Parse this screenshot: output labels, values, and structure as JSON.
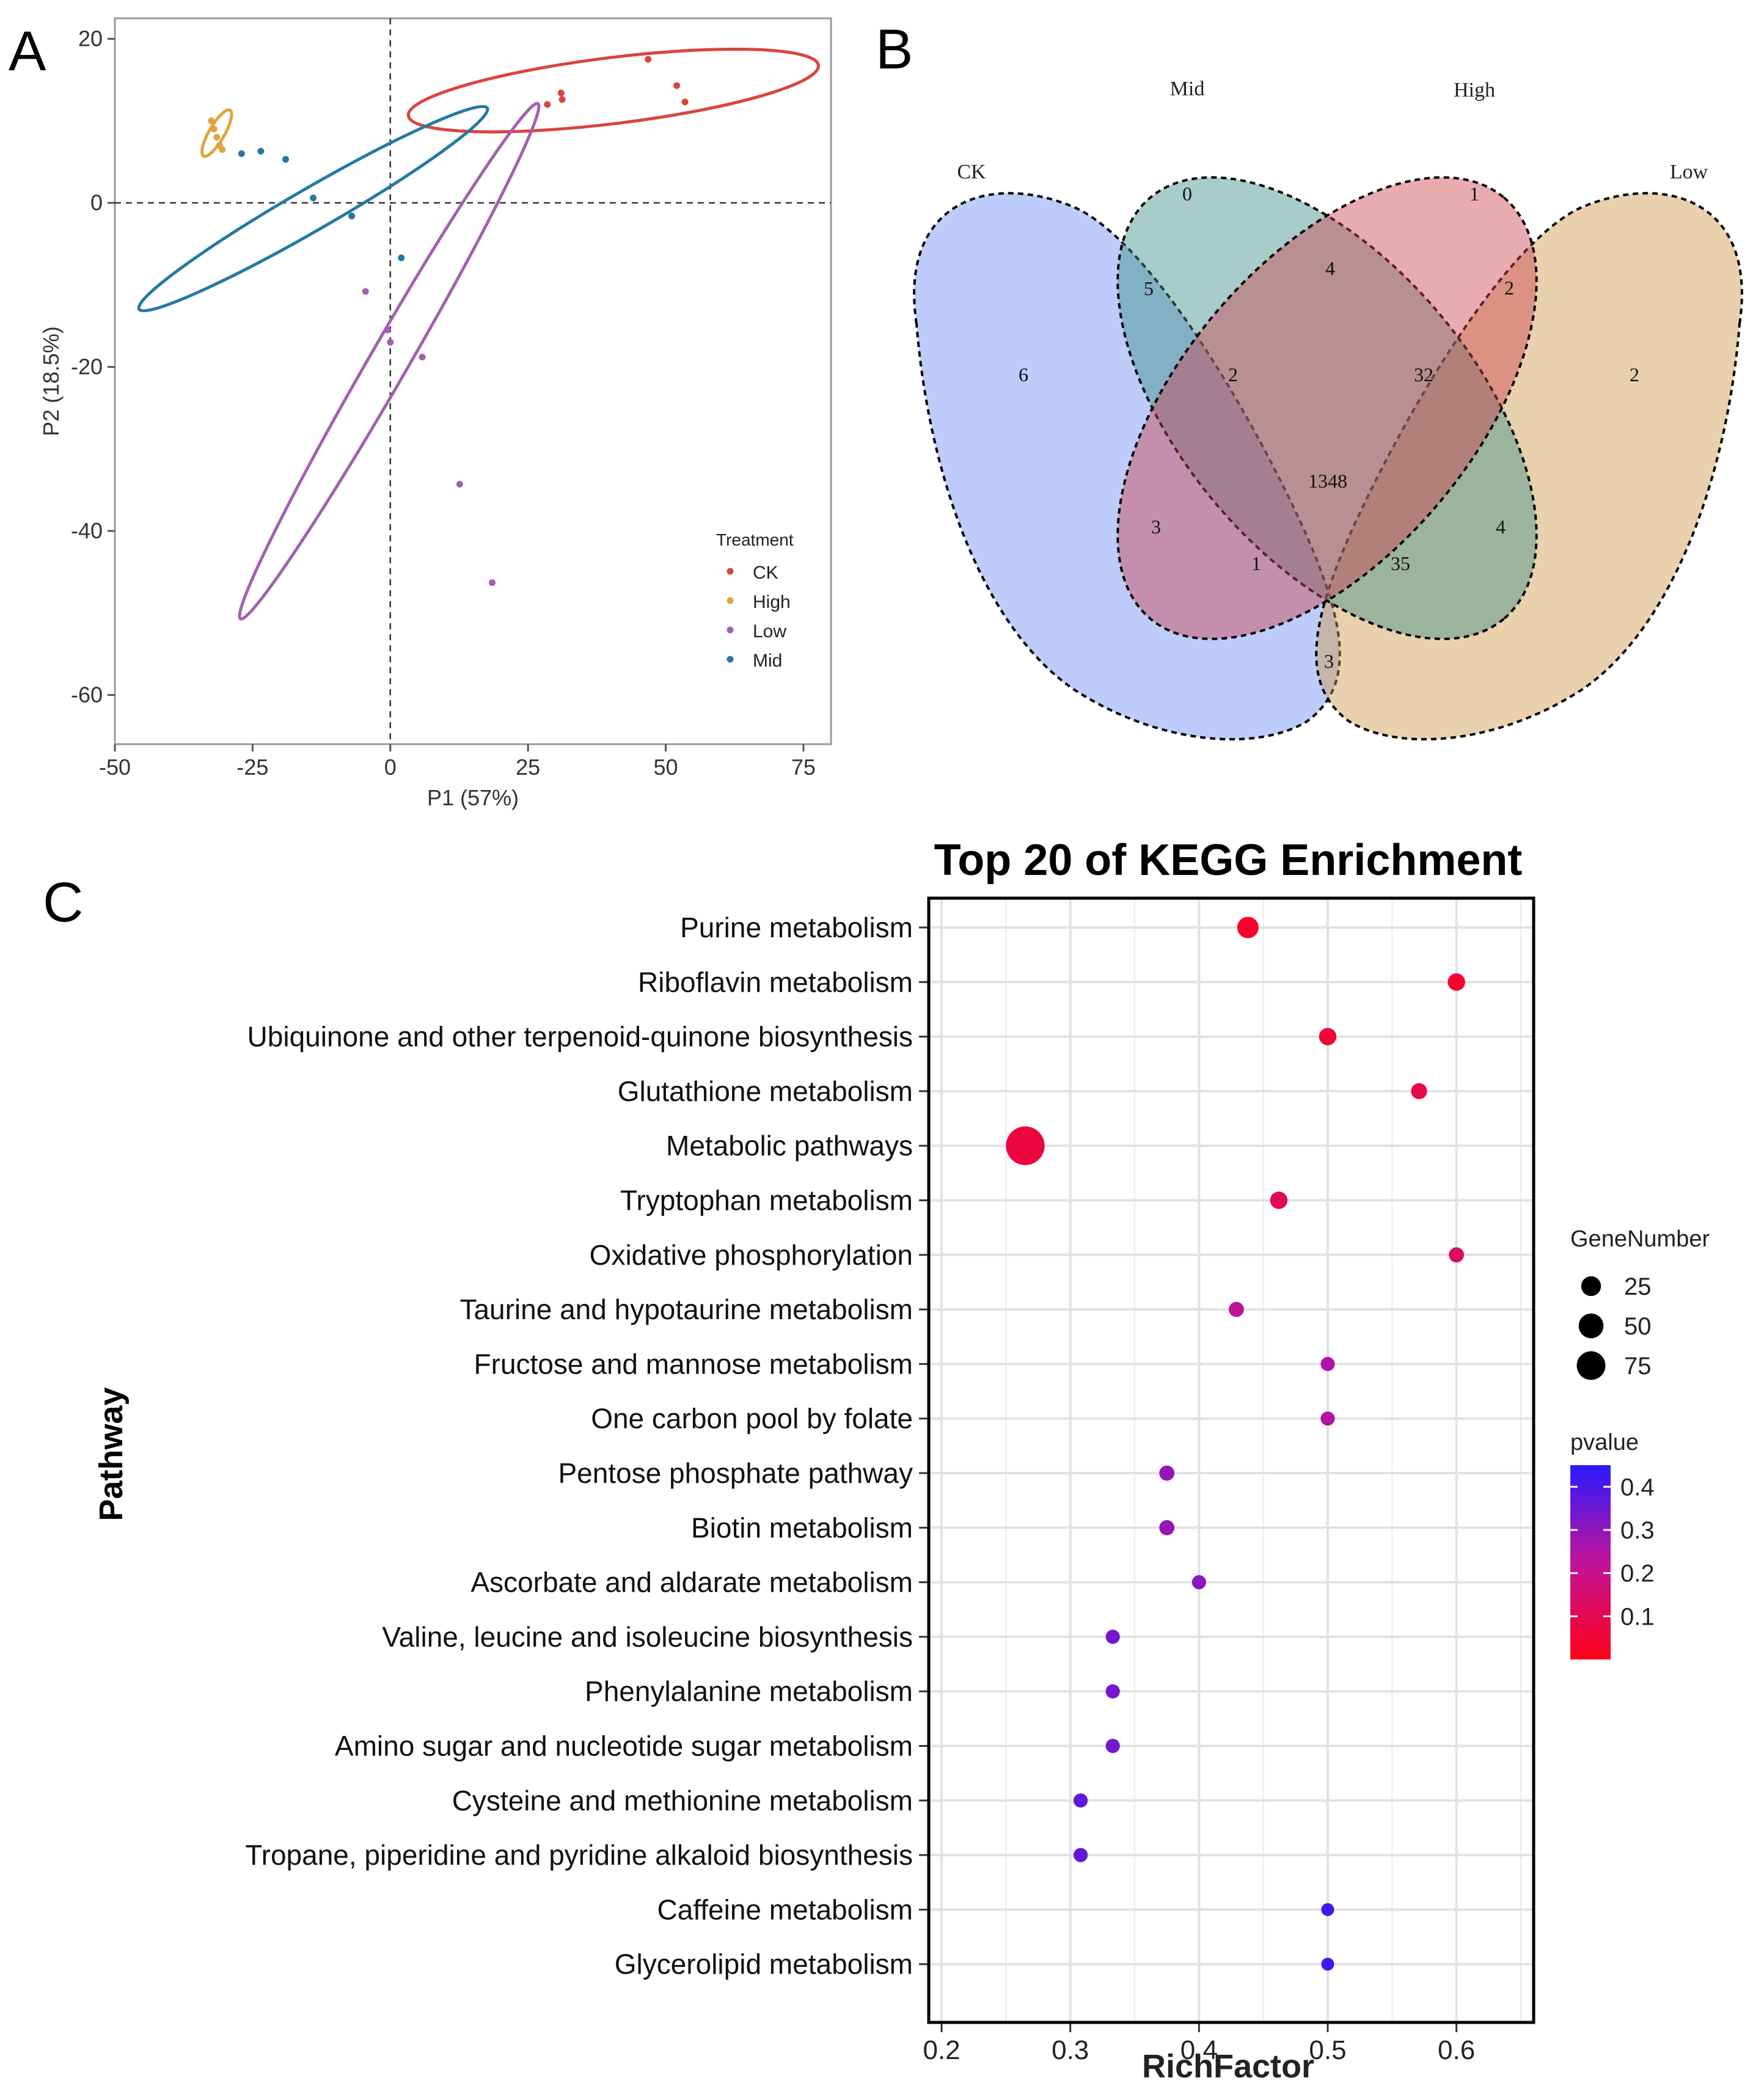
{
  "panels": {
    "a": "A",
    "b": "B",
    "c": "C"
  },
  "chart_data": [
    {
      "type": "scatter",
      "panel": "A",
      "xlabel": "P1 (57%)",
      "ylabel": "P2 (18.5%)",
      "xlim": [
        -50,
        80
      ],
      "ylim": [
        -66,
        22.5
      ],
      "xticks": [
        -50,
        -25,
        0,
        25,
        50,
        75
      ],
      "xtick_labels": [
        "-50",
        "-25",
        "0",
        "25",
        "50",
        "75"
      ],
      "yticks": [
        20,
        0,
        -20,
        -40,
        -60
      ],
      "ytick_labels": [
        "20",
        "0",
        "-20",
        "-40",
        "-60"
      ],
      "legend": {
        "title": "Treatment",
        "position": "bottom-right"
      },
      "series": [
        {
          "name": "CK",
          "color": "#d9453d",
          "points": [
            [
              28.5,
              12.0
            ],
            [
              31.0,
              13.4
            ],
            [
              31.2,
              12.6
            ],
            [
              46.8,
              17.5
            ],
            [
              52.0,
              14.3
            ],
            [
              53.5,
              12.3
            ]
          ],
          "ellipse": {
            "cx": 40.5,
            "cy": 13.7,
            "rx": 37.5,
            "ry": 6.0,
            "angle": 7
          }
        },
        {
          "name": "High",
          "color": "#e3a33b",
          "points": [
            [
              -32.5,
              10.0
            ],
            [
              -32.0,
              9.0
            ],
            [
              -31.5,
              8.0
            ],
            [
              -31.0,
              7.0
            ],
            [
              -30.5,
              6.5
            ]
          ],
          "ellipse": {
            "cx": -31.5,
            "cy": 8.5,
            "rx": 4.8,
            "ry": 1.4,
            "angle": 60
          }
        },
        {
          "name": "Low",
          "color": "#a45fb0",
          "points": [
            [
              -4.5,
              -10.8
            ],
            [
              -0.5,
              -15.5
            ],
            [
              0.0,
              -17.0
            ],
            [
              5.8,
              -18.8
            ],
            [
              12.6,
              -34.3
            ],
            [
              18.5,
              -46.3
            ]
          ],
          "ellipse": {
            "cx": -0.2,
            "cy": -19.3,
            "rx": 54,
            "ry": 3.5,
            "angle": 60
          }
        },
        {
          "name": "Mid",
          "color": "#2379a3",
          "points": [
            [
              -27.0,
              6.0
            ],
            [
              -23.5,
              6.3
            ],
            [
              -19.0,
              5.3
            ],
            [
              -14.0,
              0.6
            ],
            [
              -7.0,
              -1.6
            ],
            [
              2.0,
              -6.7
            ]
          ],
          "ellipse": {
            "cx": -14.0,
            "cy": -0.7,
            "rx": 36.5,
            "ry": 3.8,
            "angle": 30
          }
        }
      ]
    },
    {
      "type": "venn",
      "panel": "B",
      "sets": [
        {
          "name": "CK",
          "color": "#6d8ef5"
        },
        {
          "name": "Mid",
          "color": "#3f8f88"
        },
        {
          "name": "High",
          "color": "#cc4450"
        },
        {
          "name": "Low",
          "color": "#cf9a4a"
        }
      ],
      "regions": [
        {
          "sets": [
            "Mid"
          ],
          "value": "0"
        },
        {
          "sets": [
            "High"
          ],
          "value": "1"
        },
        {
          "sets": [
            "CK"
          ],
          "value": "6"
        },
        {
          "sets": [
            "Low"
          ],
          "value": "2"
        },
        {
          "sets": [
            "CK",
            "Mid"
          ],
          "value": "5"
        },
        {
          "sets": [
            "Mid",
            "High"
          ],
          "value": "4"
        },
        {
          "sets": [
            "High",
            "Low"
          ],
          "value": "2"
        },
        {
          "sets": [
            "CK",
            "Mid",
            "High"
          ],
          "value": "2"
        },
        {
          "sets": [
            "Mid",
            "High",
            "Low"
          ],
          "value": "32"
        },
        {
          "sets": [
            "CK",
            "Mid",
            "High",
            "Low"
          ],
          "value": "1348"
        },
        {
          "sets": [
            "CK",
            "High"
          ],
          "value": "3"
        },
        {
          "sets": [
            "Mid",
            "Low"
          ],
          "value": "4"
        },
        {
          "sets": [
            "CK",
            "High",
            "Low"
          ],
          "value": "1"
        },
        {
          "sets": [
            "CK",
            "Mid",
            "Low"
          ],
          "value": "35"
        },
        {
          "sets": [
            "CK",
            "Low"
          ],
          "value": "3"
        }
      ]
    },
    {
      "type": "scatter",
      "panel": "C",
      "title": "Top 20 of KEGG Enrichment",
      "xlabel": "RichFactor",
      "ylabel": "Pathway",
      "xlim": [
        0.19,
        0.66
      ],
      "xticks": [
        0.2,
        0.3,
        0.4,
        0.5,
        0.6
      ],
      "xtick_labels": [
        "0.2",
        "0.3",
        "0.4",
        "0.5",
        "0.6"
      ],
      "grid": true,
      "size_legend": {
        "title": "GeneNumber",
        "values": [
          25,
          50,
          75
        ],
        "labels": [
          "25",
          "50",
          "75"
        ]
      },
      "color_legend": {
        "title": "pvalue",
        "range": [
          0.0,
          0.45
        ],
        "ticks": [
          0.4,
          0.3,
          0.2,
          0.1
        ],
        "labels": [
          "0.4",
          "0.3",
          "0.2",
          "0.1"
        ],
        "low_color": "#ff0018",
        "high_color": "#2a1aff"
      },
      "points": [
        {
          "pathway": "Purine metabolism",
          "richfactor": 0.438,
          "genes": 14,
          "pvalue": 0.025
        },
        {
          "pathway": "Riboflavin metabolism",
          "richfactor": 0.6,
          "genes": 6,
          "pvalue": 0.04
        },
        {
          "pathway": "Ubiquinone and other terpenoid-quinone biosynthesis",
          "richfactor": 0.5,
          "genes": 6,
          "pvalue": 0.06
        },
        {
          "pathway": "Glutathione metabolism",
          "richfactor": 0.571,
          "genes": 4,
          "pvalue": 0.08
        },
        {
          "pathway": "Metabolic pathways",
          "richfactor": 0.265,
          "genes": 86,
          "pvalue": 0.07
        },
        {
          "pathway": "Tryptophan metabolism",
          "richfactor": 0.462,
          "genes": 6,
          "pvalue": 0.1
        },
        {
          "pathway": "Oxidative phosphorylation",
          "richfactor": 0.6,
          "genes": 3,
          "pvalue": 0.13
        },
        {
          "pathway": "Taurine and hypotaurine metabolism",
          "richfactor": 0.429,
          "genes": 3,
          "pvalue": 0.23
        },
        {
          "pathway": "Fructose and mannose metabolism",
          "richfactor": 0.5,
          "genes": 2,
          "pvalue": 0.25
        },
        {
          "pathway": "One carbon pool by folate",
          "richfactor": 0.5,
          "genes": 2,
          "pvalue": 0.25
        },
        {
          "pathway": "Pentose phosphate pathway",
          "richfactor": 0.375,
          "genes": 3,
          "pvalue": 0.29
        },
        {
          "pathway": "Biotin metabolism",
          "richfactor": 0.375,
          "genes": 3,
          "pvalue": 0.29
        },
        {
          "pathway": "Ascorbate and aldarate metabolism",
          "richfactor": 0.4,
          "genes": 2,
          "pvalue": 0.31
        },
        {
          "pathway": "Valine, leucine and isoleucine biosynthesis",
          "richfactor": 0.333,
          "genes": 2,
          "pvalue": 0.34
        },
        {
          "pathway": "Phenylalanine metabolism",
          "richfactor": 0.333,
          "genes": 2,
          "pvalue": 0.34
        },
        {
          "pathway": "Amino sugar and nucleotide sugar metabolism",
          "richfactor": 0.333,
          "genes": 2,
          "pvalue": 0.34
        },
        {
          "pathway": "Cysteine and methionine metabolism",
          "richfactor": 0.308,
          "genes": 2,
          "pvalue": 0.37
        },
        {
          "pathway": "Tropane, piperidine and pyridine alkaloid biosynthesis",
          "richfactor": 0.308,
          "genes": 2,
          "pvalue": 0.37
        },
        {
          "pathway": "Caffeine metabolism",
          "richfactor": 0.5,
          "genes": 1,
          "pvalue": 0.42
        },
        {
          "pathway": "Glycerolipid metabolism",
          "richfactor": 0.5,
          "genes": 1,
          "pvalue": 0.42
        }
      ]
    }
  ]
}
